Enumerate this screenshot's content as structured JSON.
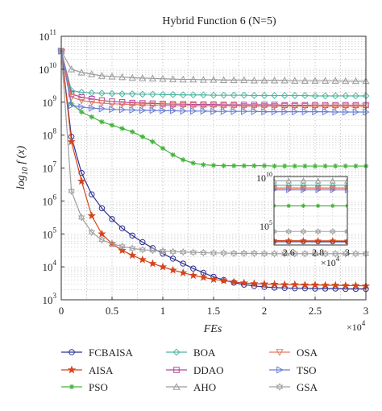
{
  "chart_data": {
    "type": "line",
    "title": "Hybrid Function 6 (N=5)",
    "xlabel": "FEs",
    "ylabel_prefix": "log",
    "ylabel_sub": "10",
    "ylabel_suffix": " f (x)",
    "x_multiplier_base": "×10",
    "x_multiplier_exp": "4",
    "xlim": [
      0,
      30000
    ],
    "ylim_log10": [
      3,
      11
    ],
    "y_scale": "log",
    "grid": true,
    "x_tick_values": [
      0,
      5000,
      10000,
      15000,
      20000,
      25000,
      30000
    ],
    "x_tick_labels": [
      "0",
      "0.5",
      "1",
      "1.5",
      "2",
      "2.5",
      "3"
    ],
    "y_tick_exponents": [
      3,
      4,
      5,
      6,
      7,
      8,
      9,
      10,
      11
    ],
    "y_tick_base": "10",
    "x": [
      0,
      1000,
      2000,
      3000,
      4000,
      5000,
      6000,
      7000,
      8000,
      9000,
      10000,
      11000,
      12000,
      13000,
      14000,
      15000,
      16000,
      17000,
      18000,
      19000,
      20000,
      21000,
      22000,
      23000,
      24000,
      25000,
      26000,
      27000,
      28000,
      29000,
      30000
    ],
    "series": [
      {
        "name": "FCBAISA",
        "color": "#2e3192",
        "marker": "circle",
        "log10_values": [
          10.55,
          7.95,
          6.85,
          6.2,
          5.78,
          5.45,
          5.17,
          4.95,
          4.75,
          4.57,
          4.4,
          4.25,
          4.1,
          3.95,
          3.82,
          3.7,
          3.6,
          3.52,
          3.46,
          3.42,
          3.39,
          3.37,
          3.36,
          3.35,
          3.35,
          3.34,
          3.34,
          3.34,
          3.33,
          3.33,
          3.33
        ]
      },
      {
        "name": "AISA",
        "color": "#d2461e",
        "marker": "star",
        "log10_values": [
          10.55,
          7.8,
          6.6,
          5.55,
          5.0,
          4.7,
          4.5,
          4.35,
          4.22,
          4.1,
          4.0,
          3.9,
          3.82,
          3.74,
          3.68,
          3.62,
          3.58,
          3.54,
          3.51,
          3.49,
          3.48,
          3.47,
          3.46,
          3.46,
          3.45,
          3.45,
          3.44,
          3.44,
          3.43,
          3.43,
          3.42
        ]
      },
      {
        "name": "PSO",
        "color": "#44b23a",
        "marker": "asterisk",
        "log10_values": [
          10.55,
          8.95,
          8.7,
          8.55,
          8.4,
          8.3,
          8.2,
          8.1,
          7.95,
          7.8,
          7.6,
          7.4,
          7.25,
          7.15,
          7.1,
          7.08,
          7.07,
          7.07,
          7.07,
          7.07,
          7.07,
          7.06,
          7.06,
          7.06,
          7.06,
          7.06,
          7.06,
          7.06,
          7.06,
          7.06,
          7.06
        ]
      },
      {
        "name": "BOA",
        "color": "#4fb8a3",
        "marker": "diamond",
        "log10_values": [
          10.55,
          9.35,
          9.3,
          9.28,
          9.27,
          9.26,
          9.25,
          9.25,
          9.24,
          9.24,
          9.23,
          9.23,
          9.22,
          9.22,
          9.22,
          9.21,
          9.21,
          9.21,
          9.21,
          9.2,
          9.2,
          9.2,
          9.2,
          9.2,
          9.2,
          9.19,
          9.19,
          9.19,
          9.19,
          9.19,
          9.19
        ]
      },
      {
        "name": "DDAO",
        "color": "#b3479d",
        "marker": "square",
        "log10_values": [
          10.55,
          9.25,
          9.15,
          9.1,
          9.05,
          9.02,
          9.0,
          8.98,
          8.97,
          8.96,
          8.95,
          8.94,
          8.94,
          8.93,
          8.93,
          8.93,
          8.92,
          8.92,
          8.92,
          8.92,
          8.92,
          8.92,
          8.91,
          8.91,
          8.91,
          8.91,
          8.91,
          8.91,
          8.91,
          8.91,
          8.91
        ]
      },
      {
        "name": "AHO",
        "color": "#9b9b9b",
        "marker": "triangle-up",
        "log10_values": [
          10.55,
          10.0,
          9.9,
          9.85,
          9.8,
          9.78,
          9.76,
          9.74,
          9.73,
          9.72,
          9.71,
          9.7,
          9.69,
          9.69,
          9.68,
          9.68,
          9.67,
          9.67,
          9.67,
          9.66,
          9.66,
          9.66,
          9.66,
          9.65,
          9.65,
          9.65,
          9.65,
          9.65,
          9.64,
          9.64,
          9.64
        ]
      },
      {
        "name": "OSA",
        "color": "#e07a63",
        "marker": "triangle-down",
        "log10_values": [
          10.55,
          9.15,
          9.05,
          9.0,
          8.97,
          8.95,
          8.94,
          8.93,
          8.92,
          8.91,
          8.91,
          8.9,
          8.9,
          8.9,
          8.89,
          8.89,
          8.89,
          8.89,
          8.88,
          8.88,
          8.88,
          8.88,
          8.88,
          8.88,
          8.88,
          8.87,
          8.87,
          8.87,
          8.87,
          8.87,
          8.87
        ]
      },
      {
        "name": "TSO",
        "color": "#6b7fd4",
        "marker": "triangle-right",
        "log10_values": [
          10.55,
          8.9,
          8.85,
          8.82,
          8.8,
          8.78,
          8.77,
          8.76,
          8.75,
          8.75,
          8.74,
          8.74,
          8.73,
          8.73,
          8.73,
          8.72,
          8.72,
          8.72,
          8.72,
          8.72,
          8.71,
          8.71,
          8.71,
          8.71,
          8.71,
          8.71,
          8.71,
          8.7,
          8.7,
          8.7,
          8.7
        ]
      },
      {
        "name": "GSA",
        "color": "#a0a0a0",
        "marker": "hexstar",
        "log10_values": [
          10.55,
          6.3,
          5.5,
          5.05,
          4.82,
          4.7,
          4.62,
          4.56,
          4.52,
          4.5,
          4.48,
          4.46,
          4.45,
          4.44,
          4.43,
          4.42,
          4.42,
          4.41,
          4.41,
          4.41,
          4.4,
          4.4,
          4.4,
          4.4,
          4.4,
          4.4,
          4.4,
          4.4,
          4.4,
          4.4,
          4.4
        ]
      }
    ],
    "inset": {
      "xlim": [
        25000,
        30000
      ],
      "x_tick_values": [
        26000,
        28000,
        30000
      ],
      "x_tick_labels": [
        "2.6",
        "2.8",
        "3"
      ],
      "x_multiplier_base": "×10",
      "x_multiplier_exp": "4",
      "y_tick_exponents": [
        5,
        10
      ],
      "y_tick_base": "10"
    },
    "legend_placement": "below",
    "legend_columns": 3
  }
}
